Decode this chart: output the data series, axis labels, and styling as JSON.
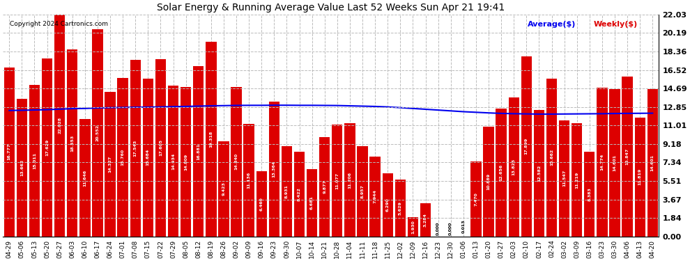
{
  "title": "Solar Energy & Running Average Value Last 52 Weeks Sun Apr 21 19:41",
  "copyright": "Copyright 2024 Cartronics.com",
  "legend_avg": "Average($)",
  "legend_weekly": "Weekly($)",
  "yticks": [
    0.0,
    1.84,
    3.67,
    5.51,
    7.34,
    9.18,
    11.01,
    12.85,
    14.69,
    16.52,
    18.36,
    20.19,
    22.03
  ],
  "bar_color": "#dd0000",
  "avg_line_color": "#0000ee",
  "background_color": "#ffffff",
  "grid_color": "#bbbbbb",
  "categories": [
    "04-29",
    "05-06",
    "05-13",
    "05-20",
    "05-27",
    "06-03",
    "06-10",
    "06-17",
    "06-24",
    "07-01",
    "07-08",
    "07-15",
    "07-22",
    "07-29",
    "08-05",
    "08-12",
    "08-19",
    "08-26",
    "09-02",
    "09-09",
    "09-16",
    "09-23",
    "09-30",
    "10-07",
    "10-14",
    "10-21",
    "10-28",
    "11-04",
    "11-11",
    "11-18",
    "11-25",
    "12-02",
    "12-09",
    "12-16",
    "12-23",
    "12-30",
    "01-06",
    "01-13",
    "01-20",
    "01-27",
    "02-03",
    "02-10",
    "02-17",
    "02-24",
    "03-02",
    "03-09",
    "03-16",
    "03-23",
    "03-30",
    "04-06",
    "04-13",
    "04-20"
  ],
  "bar_values": [
    16.777,
    13.662,
    15.011,
    17.629,
    22.028,
    18.553,
    11.646,
    20.552,
    14.327,
    15.76,
    17.543,
    15.684,
    17.605,
    14.934,
    14.809,
    16.881,
    19.318,
    9.423,
    14.84,
    11.136,
    6.46,
    13.364,
    8.931,
    8.422,
    6.681,
    9.877,
    11.077,
    11.206,
    8.957,
    7.944,
    6.29,
    5.629,
    1.93,
    3.284,
    0.0,
    0.0,
    0.013,
    7.47,
    10.889,
    12.656,
    13.825,
    17.899,
    12.582,
    15.662,
    11.547,
    11.219,
    8.383,
    14.774,
    14.601,
    15.847,
    11.819,
    14.601
  ],
  "avg_values": [
    12.5,
    12.52,
    12.55,
    12.58,
    12.63,
    12.68,
    12.7,
    12.75,
    12.78,
    12.8,
    12.82,
    12.83,
    12.85,
    12.88,
    12.9,
    12.93,
    12.96,
    12.98,
    13.0,
    13.01,
    13.01,
    13.02,
    13.02,
    13.01,
    13.01,
    13.0,
    12.99,
    12.96,
    12.93,
    12.9,
    12.85,
    12.78,
    12.7,
    12.62,
    12.54,
    12.46,
    12.38,
    12.32,
    12.26,
    12.21,
    12.18,
    12.16,
    12.14,
    12.14,
    12.15,
    12.16,
    12.17,
    12.18,
    12.2,
    12.21,
    12.22,
    12.23
  ]
}
